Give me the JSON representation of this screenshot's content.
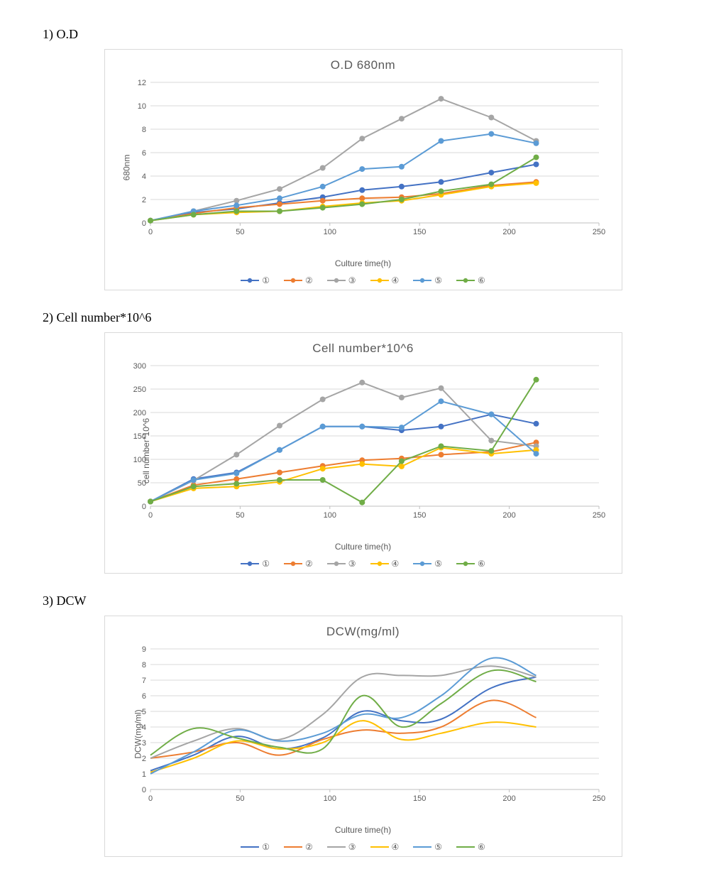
{
  "background_color": "#ffffff",
  "frame_border_color": "#d9d9d9",
  "text_color": "#595959",
  "series_legend_symbols": [
    "①",
    "②",
    "③",
    "④",
    "⑤",
    "⑥"
  ],
  "series_colors": [
    "#4472c4",
    "#ed7d31",
    "#a5a5a5",
    "#ffc000",
    "#5b9bd5",
    "#70ad47"
  ],
  "sections": [
    {
      "key": "od",
      "heading": "1) O.D",
      "chart": {
        "type": "line",
        "title": "O.D 680nm",
        "xlabel": "Culture time(h)",
        "ylabel": "680nm",
        "xlim": [
          0,
          250
        ],
        "ylim": [
          0,
          12
        ],
        "xtick_step": 50,
        "ytick_step": 2,
        "grid_color": "#d9d9d9",
        "axis_color": "#bfbfbf",
        "background_color": "#ffffff",
        "title_fontsize": 17,
        "label_fontsize": 12,
        "tick_fontsize": 11,
        "line_width": 2,
        "marker_size": 4,
        "show_markers": true,
        "smooth": false,
        "x": [
          0,
          24,
          48,
          72,
          96,
          118,
          140,
          162,
          190,
          215
        ],
        "series": [
          {
            "name": "①",
            "color": "#4472c4",
            "y": [
              0.2,
              0.9,
              1.2,
              1.7,
              2.2,
              2.8,
              3.1,
              3.5,
              4.3,
              5.0
            ]
          },
          {
            "name": "②",
            "color": "#ed7d31",
            "y": [
              0.2,
              0.8,
              1.3,
              1.6,
              1.9,
              2.1,
              2.2,
              2.5,
              3.2,
              3.5
            ]
          },
          {
            "name": "③",
            "color": "#a5a5a5",
            "y": [
              0.2,
              1.0,
              1.9,
              2.9,
              4.7,
              7.2,
              8.9,
              10.6,
              9.0,
              7.0
            ]
          },
          {
            "name": "④",
            "color": "#ffc000",
            "y": [
              0.2,
              0.7,
              0.9,
              1.0,
              1.4,
              1.7,
              1.9,
              2.4,
              3.1,
              3.4
            ]
          },
          {
            "name": "⑤",
            "color": "#5b9bd5",
            "y": [
              0.2,
              1.0,
              1.5,
              2.1,
              3.1,
              4.6,
              4.8,
              7.0,
              7.6,
              6.8
            ]
          },
          {
            "name": "⑥",
            "color": "#70ad47",
            "y": [
              0.2,
              0.7,
              1.0,
              1.0,
              1.3,
              1.6,
              2.0,
              2.7,
              3.3,
              5.6
            ]
          }
        ]
      }
    },
    {
      "key": "cell",
      "heading": "2) Cell number*10^6",
      "chart": {
        "type": "line",
        "title": "Cell number*10^6",
        "xlabel": "Culture time(h)",
        "ylabel": "cell number*10^6",
        "xlim": [
          0,
          250
        ],
        "ylim": [
          0,
          300
        ],
        "xtick_step": 50,
        "ytick_step": 50,
        "grid_color": "#d9d9d9",
        "axis_color": "#bfbfbf",
        "background_color": "#ffffff",
        "title_fontsize": 17,
        "label_fontsize": 12,
        "tick_fontsize": 11,
        "line_width": 2,
        "marker_size": 4,
        "show_markers": true,
        "smooth": false,
        "x": [
          0,
          24,
          48,
          72,
          96,
          118,
          140,
          162,
          190,
          215
        ],
        "series": [
          {
            "name": "①",
            "color": "#4472c4",
            "y": [
              10,
              58,
              72,
              120,
              170,
              170,
              162,
              170,
              196,
              176
            ]
          },
          {
            "name": "②",
            "color": "#ed7d31",
            "y": [
              10,
              45,
              58,
              72,
              86,
              98,
              102,
              110,
              116,
              136
            ]
          },
          {
            "name": "③",
            "color": "#a5a5a5",
            "y": [
              10,
              55,
              110,
              172,
              228,
              264,
              232,
              252,
              140,
              128
            ]
          },
          {
            "name": "④",
            "color": "#ffc000",
            "y": [
              10,
              38,
              42,
              52,
              80,
              90,
              85,
              125,
              112,
              120
            ]
          },
          {
            "name": "⑤",
            "color": "#5b9bd5",
            "y": [
              10,
              56,
              70,
              120,
              170,
              170,
              168,
              224,
              196,
              112
            ]
          },
          {
            "name": "⑥",
            "color": "#70ad47",
            "y": [
              10,
              42,
              48,
              56,
              56,
              8,
              96,
              128,
              118,
              270
            ]
          }
        ]
      }
    },
    {
      "key": "dcw",
      "heading": "3) DCW",
      "chart": {
        "type": "line",
        "title": "DCW(mg/ml)",
        "xlabel": "Culture time(h)",
        "ylabel": "DCW(mg/ml)",
        "xlim": [
          0,
          250
        ],
        "ylim": [
          0,
          9
        ],
        "xtick_step": 50,
        "ytick_step": 1,
        "grid_color": "#d9d9d9",
        "axis_color": "#bfbfbf",
        "background_color": "#ffffff",
        "title_fontsize": 17,
        "label_fontsize": 12,
        "tick_fontsize": 11,
        "line_width": 2,
        "marker_size": 0,
        "show_markers": false,
        "smooth": true,
        "x": [
          0,
          24,
          48,
          72,
          96,
          118,
          140,
          162,
          190,
          215
        ],
        "series": [
          {
            "name": "①",
            "color": "#4472c4",
            "y": [
              1.2,
              2.2,
              3.4,
              2.6,
              3.3,
              5.0,
              4.4,
              4.5,
              6.5,
              7.2
            ]
          },
          {
            "name": "②",
            "color": "#ed7d31",
            "y": [
              2.0,
              2.4,
              3.0,
              2.2,
              3.2,
              3.8,
              3.6,
              4.0,
              5.7,
              4.6
            ]
          },
          {
            "name": "③",
            "color": "#a5a5a5",
            "y": [
              2.0,
              3.1,
              3.9,
              3.2,
              4.8,
              7.2,
              7.3,
              7.3,
              7.9,
              7.2
            ]
          },
          {
            "name": "④",
            "color": "#ffc000",
            "y": [
              1.1,
              2.0,
              3.1,
              2.6,
              3.0,
              4.4,
              3.2,
              3.6,
              4.3,
              4.0
            ]
          },
          {
            "name": "⑤",
            "color": "#5b9bd5",
            "y": [
              1.0,
              2.4,
              3.8,
              3.1,
              3.6,
              4.8,
              4.6,
              6.0,
              8.4,
              7.3
            ]
          },
          {
            "name": "⑥",
            "color": "#70ad47",
            "y": [
              2.2,
              3.9,
              3.3,
              2.7,
              2.6,
              6.0,
              4.0,
              5.5,
              7.6,
              6.9
            ]
          }
        ]
      }
    }
  ]
}
